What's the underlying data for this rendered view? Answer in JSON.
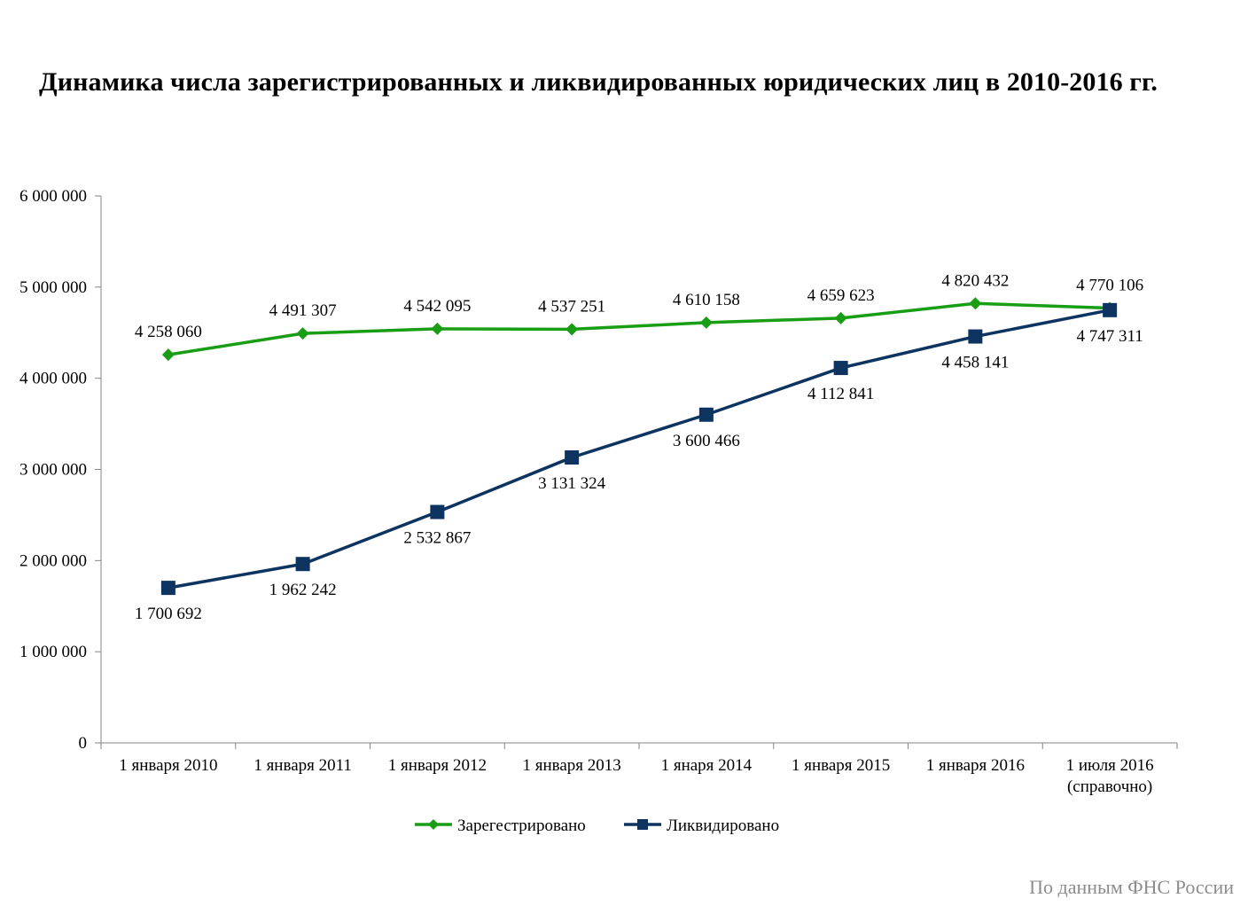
{
  "chart_data": {
    "type": "line",
    "title": "Динамика числа зарегистрированных  и ликвидированных юридических лиц в 2010-2016 гг.",
    "xlabel": "",
    "ylabel": "",
    "ylim": [
      0,
      6000000
    ],
    "y_ticks": [
      "0",
      "1 000 000",
      "2 000 000",
      "3 000 000",
      "4 000 000",
      "5 000 000",
      "6 000 000"
    ],
    "categories": [
      [
        "1  января 2010"
      ],
      [
        "1 января 2011"
      ],
      [
        "1 января 2012"
      ],
      [
        "1 января 2013"
      ],
      [
        "1 янаря 2014"
      ],
      [
        "1  января 2015"
      ],
      [
        "1 января 2016"
      ],
      [
        "1 июля 2016",
        "(справочно)"
      ]
    ],
    "grid": false,
    "legend_position": "bottom",
    "series": [
      {
        "name": "Зарегестрировано",
        "color": "#199d15",
        "marker": "diamond",
        "values": [
          4258060,
          4491307,
          4542095,
          4537251,
          4610158,
          4659623,
          4820432,
          4770106
        ],
        "labels": [
          "4 258 060",
          "4 491 307",
          "4 542 095",
          "4 537 251",
          "4 610 158",
          "4 659 623",
          "4 820 432",
          "4 770 106"
        ],
        "label_position": "above"
      },
      {
        "name": "Ликвидировано",
        "color": "#0d3360",
        "marker": "square",
        "values": [
          1700692,
          1962242,
          2532867,
          3131324,
          3600466,
          4112841,
          4458141,
          4747311
        ],
        "labels": [
          "1 700 692",
          "1 962 242",
          "2 532 867",
          "3 131 324",
          "3 600 466",
          "4 112 841",
          "4 458 141",
          "4 747 311"
        ],
        "label_position": "below"
      }
    ]
  },
  "source_note": "По данным ФНС России"
}
